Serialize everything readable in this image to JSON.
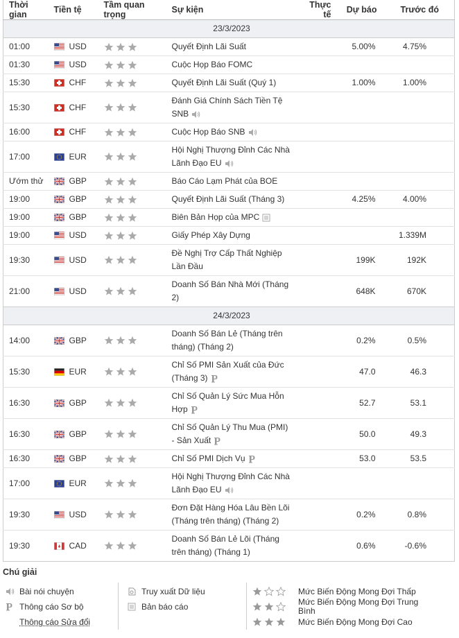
{
  "table": {
    "headers": [
      "Thời gian",
      "Tiền tệ",
      "Tầm quan trọng",
      "Sự kiện",
      "Thực tế",
      "Dự báo",
      "Trước đó"
    ],
    "sections": [
      {
        "date": "23/3/2023",
        "rows": [
          {
            "time": "01:00",
            "flag": "us",
            "currency": "USD",
            "importance": 3,
            "event": "Quyết Định Lãi Suất",
            "forecast": "5.00%",
            "previous": "4.75%"
          },
          {
            "time": "01:30",
            "flag": "us",
            "currency": "USD",
            "importance": 3,
            "event": "Cuộc Họp Báo FOMC"
          },
          {
            "time": "15:30",
            "flag": "ch",
            "currency": "CHF",
            "importance": 3,
            "event": "Quyết Định Lãi Suất (Quý 1)",
            "forecast": "1.00%",
            "previous": "1.00%"
          },
          {
            "time": "15:30",
            "flag": "ch",
            "currency": "CHF",
            "importance": 3,
            "event": "Đánh Giá Chính Sách Tiền Tệ SNB",
            "icon": "speech"
          },
          {
            "time": "16:00",
            "flag": "ch",
            "currency": "CHF",
            "importance": 3,
            "event": "Cuộc Họp Báo SNB",
            "icon": "speech"
          },
          {
            "time": "17:00",
            "flag": "eu",
            "currency": "EUR",
            "importance": 3,
            "event": "Hội Nghị Thượng Đỉnh Các Nhà Lãnh Đạo EU",
            "icon": "speech"
          },
          {
            "time": "Ướm thử",
            "flag": "gb",
            "currency": "GBP",
            "importance": 3,
            "event": "Báo Cáo Lạm Phát của BOE"
          },
          {
            "time": "19:00",
            "flag": "gb",
            "currency": "GBP",
            "importance": 3,
            "event": "Quyết Định Lãi Suất (Tháng 3)",
            "forecast": "4.25%",
            "previous": "4.00%"
          },
          {
            "time": "19:00",
            "flag": "gb",
            "currency": "GBP",
            "importance": 3,
            "event": "Biên Bản Họp của MPC",
            "icon": "report"
          },
          {
            "time": "19:00",
            "flag": "us",
            "currency": "USD",
            "importance": 3,
            "event": "Giấy Phép Xây Dựng",
            "previous": "1.339M"
          },
          {
            "time": "19:30",
            "flag": "us",
            "currency": "USD",
            "importance": 3,
            "event": "Đề Nghị Trợ Cấp Thất Nghiệp Lần Đầu",
            "forecast": "199K",
            "previous": "192K"
          },
          {
            "time": "21:00",
            "flag": "us",
            "currency": "USD",
            "importance": 3,
            "event": "Doanh Số Bán Nhà Mới (Tháng 2)",
            "forecast": "648K",
            "previous": "670K"
          }
        ]
      },
      {
        "date": "24/3/2023",
        "rows": [
          {
            "time": "14:00",
            "flag": "gb",
            "currency": "GBP",
            "importance": 3,
            "event": "Doanh Số Bán Lẻ (Tháng trên tháng) (Tháng 2)",
            "forecast": "0.2%",
            "previous": "0.5%"
          },
          {
            "time": "15:30",
            "flag": "de",
            "currency": "EUR",
            "importance": 3,
            "event": "Chỉ Số PMI Sản Xuất của Đức (Tháng 3)",
            "icon": "preliminary",
            "forecast": "47.0",
            "previous": "46.3"
          },
          {
            "time": "16:30",
            "flag": "gb",
            "currency": "GBP",
            "importance": 3,
            "event": "Chỉ Số Quản Lý Sức Mua Hỗn Hợp",
            "icon": "preliminary",
            "forecast": "52.7",
            "previous": "53.1"
          },
          {
            "time": "16:30",
            "flag": "gb",
            "currency": "GBP",
            "importance": 3,
            "event": "Chỉ Số Quản Lý Thu Mua (PMI) - Sản Xuất",
            "icon": "preliminary",
            "forecast": "50.0",
            "previous": "49.3"
          },
          {
            "time": "16:30",
            "flag": "gb",
            "currency": "GBP",
            "importance": 3,
            "event": "Chỉ Số PMI Dịch Vụ",
            "icon": "preliminary",
            "forecast": "53.0",
            "previous": "53.5"
          },
          {
            "time": "17:00",
            "flag": "eu",
            "currency": "EUR",
            "importance": 3,
            "event": "Hội Nghị Thượng Đỉnh Các Nhà Lãnh Đạo EU",
            "icon": "speech"
          },
          {
            "time": "19:30",
            "flag": "us",
            "currency": "USD",
            "importance": 3,
            "event": "Đơn Đặt Hàng Hóa Lâu Bền Lõi (Tháng trên tháng) (Tháng 2)",
            "forecast": "0.2%",
            "previous": "0.8%"
          },
          {
            "time": "19:30",
            "flag": "ca",
            "currency": "CAD",
            "importance": 3,
            "event": "Doanh Số Bán Lẻ Lõi (Tháng trên tháng) (Tháng 1)",
            "forecast": "0.6%",
            "previous": "-0.6%"
          }
        ]
      }
    ]
  },
  "legend": {
    "title": "Chú giải",
    "columns": [
      [
        {
          "icon": "speech",
          "label": "Bài nói chuyện"
        },
        {
          "icon": "preliminary",
          "label": "Thông cáo Sơ bộ"
        },
        {
          "label": "Thông cáo Sửa đổi"
        }
      ],
      [
        {
          "icon": "retrieve",
          "label": "Truy xuất Dữ liệu"
        },
        {
          "icon": "report",
          "label": "Bản báo cáo"
        }
      ],
      [
        {
          "importance": 1,
          "label": "Mức Biến Động Mong Đợi Thấp"
        },
        {
          "importance": 2,
          "label": "Mức Biến Động Mong Đợi Trung Bình"
        },
        {
          "importance": 3,
          "label": "Mức Biến Động Mong Đợi Cao"
        }
      ]
    ]
  }
}
